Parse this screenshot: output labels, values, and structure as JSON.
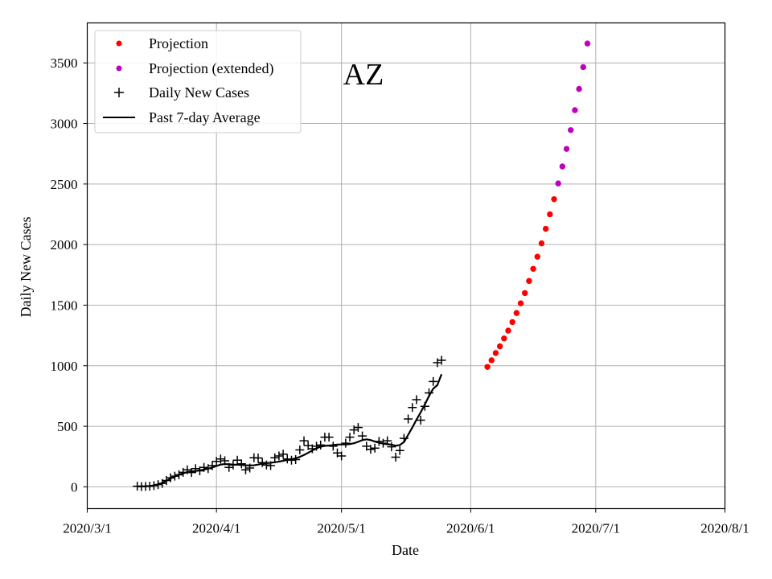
{
  "chart_data": {
    "type": "scatter",
    "title": "AZ",
    "xlabel": "Date",
    "ylabel": "Daily New Cases",
    "xlim": [
      "2020-03-01",
      "2020-08-01"
    ],
    "ylim": [
      -180,
      3830
    ],
    "grid": true,
    "legend_position": "top-left",
    "x_ticks": [
      {
        "date": "2020-03-01",
        "label": "2020/3/1"
      },
      {
        "date": "2020-04-01",
        "label": "2020/4/1"
      },
      {
        "date": "2020-05-01",
        "label": "2020/5/1"
      },
      {
        "date": "2020-06-01",
        "label": "2020/6/1"
      },
      {
        "date": "2020-07-01",
        "label": "2020/7/1"
      },
      {
        "date": "2020-08-01",
        "label": "2020/8/1"
      }
    ],
    "y_ticks": [
      0,
      500,
      1000,
      1500,
      2000,
      2500,
      3000,
      3500
    ],
    "colors": {
      "projection": "#ff0000",
      "projection_extended": "#bf00bf",
      "daily": "#000000",
      "average": "#000000"
    },
    "series": [
      {
        "name": "Projection",
        "marker": "dot",
        "color": "#ff0000",
        "start_date": "2020-06-05",
        "values": [
          990,
          1045,
          1105,
          1160,
          1225,
          1290,
          1360,
          1435,
          1515,
          1600,
          1700,
          1800,
          1900,
          2010,
          2130,
          2250,
          2375
        ]
      },
      {
        "name": "Projection (extended)",
        "marker": "dot",
        "color": "#bf00bf",
        "start_date": "2020-06-22",
        "values": [
          2505,
          2645,
          2790,
          2945,
          3110,
          3285,
          3465,
          3660
        ]
      },
      {
        "name": "Daily New Cases",
        "marker": "plus",
        "color": "#000000",
        "start_date": "2020-03-13",
        "values": [
          5,
          2,
          3,
          5,
          10,
          18,
          28,
          52,
          75,
          88,
          100,
          120,
          140,
          118,
          150,
          132,
          160,
          150,
          175,
          210,
          230,
          215,
          160,
          180,
          220,
          190,
          140,
          155,
          240,
          238,
          200,
          180,
          175,
          240,
          255,
          270,
          230,
          220,
          225,
          305,
          380,
          340,
          315,
          335,
          345,
          410,
          410,
          335,
          280,
          255,
          360,
          410,
          470,
          490,
          420,
          335,
          310,
          320,
          375,
          360,
          380,
          330,
          245,
          300,
          400,
          560,
          655,
          720,
          550,
          665,
          775,
          870,
          1025,
          1045
        ]
      },
      {
        "name": "Past 7-day Average",
        "marker": "line",
        "color": "#000000",
        "start_date": "2020-03-13",
        "values": [
          3,
          4,
          5,
          7,
          12,
          20,
          32,
          50,
          68,
          86,
          100,
          112,
          122,
          127,
          131,
          136,
          142,
          150,
          160,
          172,
          184,
          188,
          186,
          184,
          183,
          181,
          178,
          176,
          178,
          184,
          191,
          196,
          199,
          203,
          208,
          215,
          222,
          228,
          235,
          247,
          263,
          281,
          300,
          318,
          331,
          338,
          341,
          345,
          349,
          350,
          350,
          353,
          360,
          372,
          386,
          392,
          386,
          374,
          364,
          357,
          352,
          348,
          340,
          345,
          370,
          430,
          490,
          555,
          615,
          680,
          750,
          810,
          840,
          930
        ]
      }
    ]
  }
}
